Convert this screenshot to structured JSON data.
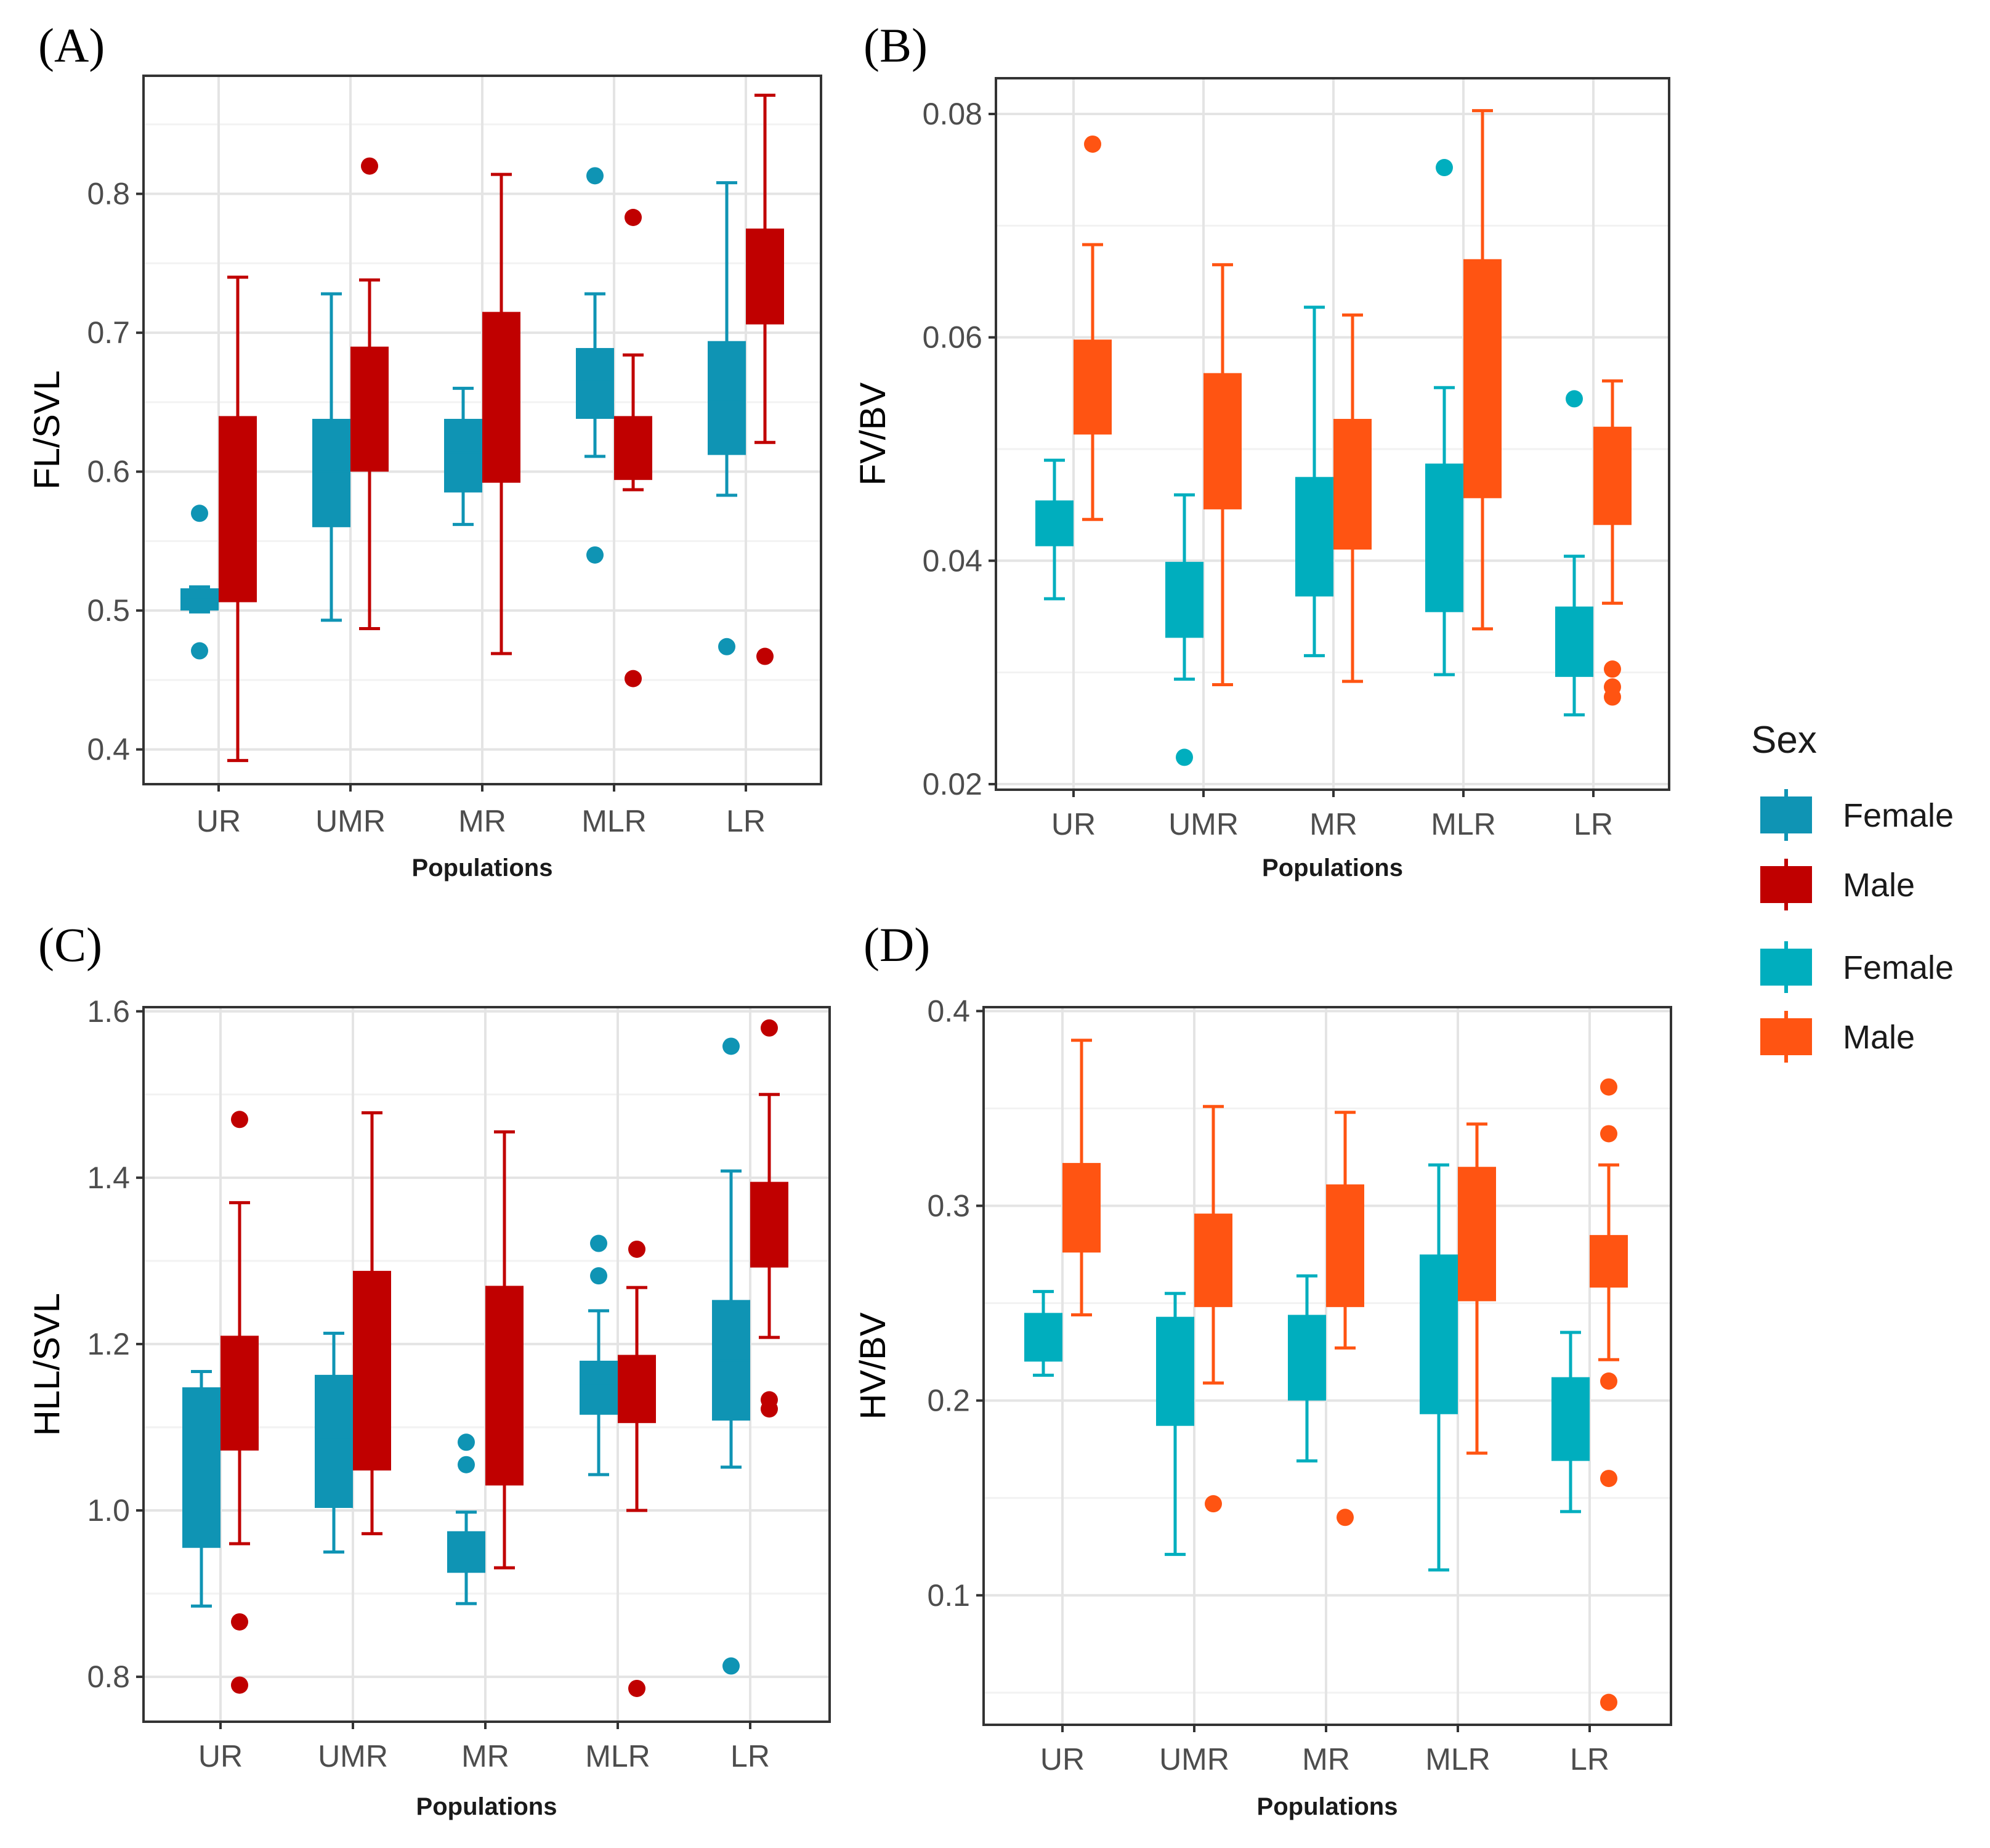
{
  "colors": {
    "female_a": "#0f94b4",
    "male_a": "#c00000",
    "female_b": "#00aebe",
    "male_b": "#ff5412",
    "grid_major": "#e4e4e4",
    "grid_minor": "#f2f2f2",
    "panel_border": "#333333"
  },
  "legend": {
    "title": "Sex",
    "entries": [
      {
        "label": "Female",
        "color_key": "female_a"
      },
      {
        "label": "Male",
        "color_key": "male_a"
      },
      {
        "label": "Female",
        "color_key": "female_b"
      },
      {
        "label": "Male",
        "color_key": "male_b"
      }
    ]
  },
  "chart_data": [
    {
      "id": "A",
      "type": "box",
      "panel_label": "(A)",
      "xlabel": "Populations",
      "ylabel": "FL/SVL",
      "categories": [
        "UR",
        "UMR",
        "MR",
        "MLR",
        "LR"
      ],
      "ylim": [
        0.375,
        0.885
      ],
      "yticks": [
        0.4,
        0.5,
        0.6,
        0.7,
        0.8
      ],
      "ytick_labels": [
        "0.4",
        "0.5",
        "0.6",
        "0.7",
        "0.8"
      ],
      "series": [
        {
          "name": "Female",
          "color_key": "female_a",
          "boxes": [
            {
              "min": 0.499,
              "q1": 0.5,
              "median": 0.508,
              "q3": 0.516,
              "max": 0.517,
              "outliers": [
                0.57,
                0.471
              ]
            },
            {
              "min": 0.493,
              "q1": 0.56,
              "median": 0.6,
              "q3": 0.638,
              "max": 0.728,
              "outliers": []
            },
            {
              "min": 0.562,
              "q1": 0.585,
              "median": 0.614,
              "q3": 0.638,
              "max": 0.66,
              "outliers": []
            },
            {
              "min": 0.611,
              "q1": 0.638,
              "median": 0.665,
              "q3": 0.689,
              "max": 0.728,
              "outliers": [
                0.813,
                0.54
              ]
            },
            {
              "min": 0.583,
              "q1": 0.612,
              "median": 0.65,
              "q3": 0.694,
              "max": 0.808,
              "outliers": [
                0.474
              ]
            }
          ]
        },
        {
          "name": "Male",
          "color_key": "male_a",
          "boxes": [
            {
              "min": 0.392,
              "q1": 0.506,
              "median": 0.57,
              "q3": 0.64,
              "max": 0.74,
              "outliers": []
            },
            {
              "min": 0.487,
              "q1": 0.6,
              "median": 0.648,
              "q3": 0.69,
              "max": 0.738,
              "outliers": [
                0.82
              ]
            },
            {
              "min": 0.469,
              "q1": 0.592,
              "median": 0.65,
              "q3": 0.715,
              "max": 0.814,
              "outliers": []
            },
            {
              "min": 0.587,
              "q1": 0.594,
              "median": 0.615,
              "q3": 0.64,
              "max": 0.684,
              "outliers": [
                0.783,
                0.451
              ]
            },
            {
              "min": 0.621,
              "q1": 0.706,
              "median": 0.74,
              "q3": 0.775,
              "max": 0.871,
              "outliers": [
                0.467
              ]
            }
          ]
        }
      ]
    },
    {
      "id": "B",
      "type": "box",
      "panel_label": "(B)",
      "xlabel": "Populations",
      "ylabel": "FV/BV",
      "categories": [
        "UR",
        "UMR",
        "MR",
        "MLR",
        "LR"
      ],
      "ylim": [
        0.0195,
        0.0832
      ],
      "yticks": [
        0.02,
        0.04,
        0.06,
        0.08
      ],
      "ytick_labels": [
        "0.02",
        "0.04",
        "0.06",
        "0.08"
      ],
      "series": [
        {
          "name": "Female",
          "color_key": "female_b",
          "boxes": [
            {
              "min": 0.0366,
              "q1": 0.0413,
              "median": 0.0435,
              "q3": 0.0454,
              "max": 0.049,
              "outliers": []
            },
            {
              "min": 0.0294,
              "q1": 0.0331,
              "median": 0.0368,
              "q3": 0.0399,
              "max": 0.0459,
              "outliers": [
                0.0224
              ]
            },
            {
              "min": 0.0315,
              "q1": 0.0368,
              "median": 0.042,
              "q3": 0.0475,
              "max": 0.0627,
              "outliers": []
            },
            {
              "min": 0.0298,
              "q1": 0.0354,
              "median": 0.042,
              "q3": 0.0487,
              "max": 0.0555,
              "outliers": [
                0.0752
              ]
            },
            {
              "min": 0.0262,
              "q1": 0.0296,
              "median": 0.0328,
              "q3": 0.0359,
              "max": 0.0404,
              "outliers": [
                0.0545
              ]
            }
          ]
        },
        {
          "name": "Male",
          "color_key": "male_b",
          "boxes": [
            {
              "min": 0.0437,
              "q1": 0.0513,
              "median": 0.0555,
              "q3": 0.0598,
              "max": 0.0683,
              "outliers": [
                0.0773
              ]
            },
            {
              "min": 0.0289,
              "q1": 0.0446,
              "median": 0.0505,
              "q3": 0.0568,
              "max": 0.0665,
              "outliers": []
            },
            {
              "min": 0.0292,
              "q1": 0.041,
              "median": 0.0468,
              "q3": 0.0527,
              "max": 0.062,
              "outliers": []
            },
            {
              "min": 0.0339,
              "q1": 0.0456,
              "median": 0.056,
              "q3": 0.067,
              "max": 0.0803,
              "outliers": []
            },
            {
              "min": 0.0362,
              "q1": 0.0432,
              "median": 0.0475,
              "q3": 0.052,
              "max": 0.0561,
              "outliers": [
                0.0303,
                0.0287,
                0.0278
              ]
            }
          ]
        }
      ]
    },
    {
      "id": "C",
      "type": "box",
      "panel_label": "(C)",
      "xlabel": "Populations",
      "ylabel": "HLL/SVL",
      "categories": [
        "UR",
        "UMR",
        "MR",
        "MLR",
        "LR"
      ],
      "ylim": [
        0.746,
        1.605
      ],
      "yticks": [
        0.8,
        1.0,
        1.2,
        1.4,
        1.6
      ],
      "ytick_labels": [
        "0.8",
        "1.0",
        "1.2",
        "1.4",
        "1.6"
      ],
      "series": [
        {
          "name": "Female",
          "color_key": "female_a",
          "boxes": [
            {
              "min": 0.885,
              "q1": 0.955,
              "median": 1.06,
              "q3": 1.148,
              "max": 1.167,
              "outliers": []
            },
            {
              "min": 0.95,
              "q1": 1.003,
              "median": 1.085,
              "q3": 1.163,
              "max": 1.213,
              "outliers": []
            },
            {
              "min": 0.888,
              "q1": 0.925,
              "median": 0.95,
              "q3": 0.975,
              "max": 0.998,
              "outliers": [
                1.082,
                1.055
              ]
            },
            {
              "min": 1.043,
              "q1": 1.115,
              "median": 1.15,
              "q3": 1.18,
              "max": 1.24,
              "outliers": [
                1.321,
                1.282
              ]
            },
            {
              "min": 1.052,
              "q1": 1.108,
              "median": 1.18,
              "q3": 1.253,
              "max": 1.408,
              "outliers": [
                1.558,
                0.813
              ]
            }
          ]
        },
        {
          "name": "Male",
          "color_key": "male_a",
          "boxes": [
            {
              "min": 0.96,
              "q1": 1.072,
              "median": 1.14,
              "q3": 1.21,
              "max": 1.37,
              "outliers": [
                1.47,
                0.866,
                0.79
              ]
            },
            {
              "min": 0.972,
              "q1": 1.048,
              "median": 1.17,
              "q3": 1.288,
              "max": 1.478,
              "outliers": []
            },
            {
              "min": 0.931,
              "q1": 1.03,
              "median": 1.15,
              "q3": 1.27,
              "max": 1.455,
              "outliers": []
            },
            {
              "min": 1.0,
              "q1": 1.105,
              "median": 1.145,
              "q3": 1.187,
              "max": 1.268,
              "outliers": [
                1.314,
                0.786
              ]
            },
            {
              "min": 1.208,
              "q1": 1.292,
              "median": 1.345,
              "q3": 1.395,
              "max": 1.5,
              "outliers": [
                1.58,
                1.133,
                1.122
              ]
            }
          ]
        }
      ]
    },
    {
      "id": "D",
      "type": "box",
      "panel_label": "(D)",
      "xlabel": "Populations",
      "ylabel": "HV/BV",
      "categories": [
        "UR",
        "UMR",
        "MR",
        "MLR",
        "LR"
      ],
      "ylim": [
        0.0335,
        0.402
      ],
      "yticks": [
        0.1,
        0.2,
        0.3,
        0.4
      ],
      "ytick_labels": [
        "0.1",
        "0.2",
        "0.3",
        "0.4"
      ],
      "series": [
        {
          "name": "Female",
          "color_key": "female_b",
          "boxes": [
            {
              "min": 0.213,
              "q1": 0.22,
              "median": 0.232,
              "q3": 0.245,
              "max": 0.256,
              "outliers": []
            },
            {
              "min": 0.121,
              "q1": 0.187,
              "median": 0.215,
              "q3": 0.243,
              "max": 0.255,
              "outliers": []
            },
            {
              "min": 0.169,
              "q1": 0.2,
              "median": 0.222,
              "q3": 0.244,
              "max": 0.264,
              "outliers": []
            },
            {
              "min": 0.113,
              "q1": 0.193,
              "median": 0.234,
              "q3": 0.275,
              "max": 0.321,
              "outliers": []
            },
            {
              "min": 0.143,
              "q1": 0.169,
              "median": 0.191,
              "q3": 0.212,
              "max": 0.235,
              "outliers": []
            }
          ]
        },
        {
          "name": "Male",
          "color_key": "male_b",
          "boxes": [
            {
              "min": 0.244,
              "q1": 0.276,
              "median": 0.299,
              "q3": 0.322,
              "max": 0.385,
              "outliers": []
            },
            {
              "min": 0.209,
              "q1": 0.248,
              "median": 0.272,
              "q3": 0.296,
              "max": 0.351,
              "outliers": [
                0.147
              ]
            },
            {
              "min": 0.227,
              "q1": 0.248,
              "median": 0.279,
              "q3": 0.311,
              "max": 0.348,
              "outliers": [
                0.14
              ]
            },
            {
              "min": 0.173,
              "q1": 0.251,
              "median": 0.285,
              "q3": 0.32,
              "max": 0.342,
              "outliers": []
            },
            {
              "min": 0.221,
              "q1": 0.258,
              "median": 0.271,
              "q3": 0.285,
              "max": 0.321,
              "outliers": [
                0.361,
                0.337,
                0.21,
                0.16,
                0.045
              ]
            }
          ]
        }
      ]
    }
  ]
}
